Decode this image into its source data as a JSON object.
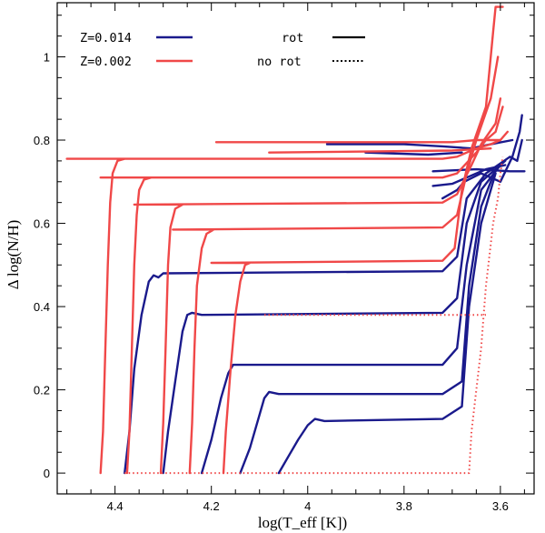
{
  "chart_data": {
    "type": "line",
    "title": "",
    "xlabel": "log(T_eff [K])",
    "ylabel": "Δ log(N/H)",
    "xlim": [
      4.52,
      3.53
    ],
    "ylim": [
      -0.05,
      1.13
    ],
    "x_ticks": [
      4.4,
      4.2,
      4.0,
      3.8,
      3.6
    ],
    "y_ticks": [
      0,
      0.2,
      0.4,
      0.6,
      0.8,
      1.0
    ],
    "x_tick_labels": [
      "4.4",
      "4.2",
      "4",
      "3.8",
      "3.6"
    ],
    "y_tick_labels": [
      "0",
      "0.2",
      "0.4",
      "0.6",
      "0.8",
      "1"
    ],
    "colors": {
      "z014": "#1a1a8c",
      "z002": "#f04848",
      "axis": "#000000"
    },
    "legend": {
      "z014": "Z=0.014",
      "z002": "Z=0.002",
      "rot": "rot",
      "norot": "no rot"
    },
    "series": [
      {
        "name": "Z=0.014 rot",
        "color": "#1a1a8c",
        "style": "solid",
        "points": [
          [
            4.06,
            0.0
          ],
          [
            4.04,
            0.04
          ],
          [
            4.02,
            0.08
          ],
          [
            4.0,
            0.115
          ],
          [
            3.985,
            0.13
          ],
          [
            3.965,
            0.125
          ],
          [
            3.72,
            0.13
          ],
          [
            3.68,
            0.16
          ],
          [
            3.665,
            0.4
          ],
          [
            3.64,
            0.6
          ],
          [
            3.61,
            0.72
          ]
        ]
      },
      {
        "name": "Z=0.014 rot",
        "color": "#1a1a8c",
        "style": "solid",
        "points": [
          [
            4.14,
            0.0
          ],
          [
            4.12,
            0.06
          ],
          [
            4.1,
            0.14
          ],
          [
            4.09,
            0.18
          ],
          [
            4.08,
            0.195
          ],
          [
            4.06,
            0.19
          ],
          [
            3.72,
            0.19
          ],
          [
            3.68,
            0.22
          ],
          [
            3.665,
            0.45
          ],
          [
            3.64,
            0.64
          ],
          [
            3.61,
            0.73
          ]
        ]
      },
      {
        "name": "Z=0.014 rot",
        "color": "#1a1a8c",
        "style": "solid",
        "points": [
          [
            4.22,
            0.0
          ],
          [
            4.2,
            0.08
          ],
          [
            4.18,
            0.18
          ],
          [
            4.165,
            0.24
          ],
          [
            4.155,
            0.26
          ],
          [
            4.13,
            0.26
          ],
          [
            3.72,
            0.26
          ],
          [
            3.69,
            0.3
          ],
          [
            3.67,
            0.5
          ],
          [
            3.64,
            0.68
          ],
          [
            3.6,
            0.74
          ]
        ]
      },
      {
        "name": "Z=0.014 rot",
        "color": "#1a1a8c",
        "style": "solid",
        "points": [
          [
            4.3,
            0.0
          ],
          [
            4.29,
            0.1
          ],
          [
            4.275,
            0.22
          ],
          [
            4.26,
            0.34
          ],
          [
            4.25,
            0.38
          ],
          [
            4.24,
            0.385
          ],
          [
            4.22,
            0.38
          ],
          [
            3.72,
            0.385
          ],
          [
            3.69,
            0.42
          ],
          [
            3.67,
            0.6
          ],
          [
            3.64,
            0.7
          ],
          [
            3.59,
            0.75
          ]
        ]
      },
      {
        "name": "Z=0.014 rot",
        "color": "#1a1a8c",
        "style": "solid",
        "points": [
          [
            4.38,
            0.0
          ],
          [
            4.37,
            0.1
          ],
          [
            4.36,
            0.25
          ],
          [
            4.345,
            0.38
          ],
          [
            4.33,
            0.46
          ],
          [
            4.32,
            0.475
          ],
          [
            4.31,
            0.47
          ],
          [
            4.3,
            0.48
          ],
          [
            3.72,
            0.485
          ],
          [
            3.69,
            0.52
          ],
          [
            3.67,
            0.66
          ],
          [
            3.63,
            0.72
          ],
          [
            3.58,
            0.76
          ],
          [
            3.565,
            0.75
          ],
          [
            3.555,
            0.8
          ]
        ]
      },
      {
        "name": "Z=0.014 rot",
        "color": "#1a1a8c",
        "style": "solid",
        "points": [
          [
            3.72,
            0.66
          ],
          [
            3.69,
            0.68
          ],
          [
            3.675,
            0.7
          ],
          [
            3.64,
            0.72
          ],
          [
            3.6,
            0.7
          ],
          [
            3.575,
            0.76
          ],
          [
            3.56,
            0.82
          ],
          [
            3.555,
            0.86
          ]
        ]
      },
      {
        "name": "Z=0.014 rot",
        "color": "#1a1a8c",
        "style": "solid",
        "points": [
          [
            3.74,
            0.69
          ],
          [
            3.7,
            0.695
          ],
          [
            3.67,
            0.71
          ],
          [
            3.63,
            0.73
          ],
          [
            3.59,
            0.74
          ]
        ]
      },
      {
        "name": "Z=0.014 rot",
        "color": "#1a1a8c",
        "style": "solid",
        "points": [
          [
            3.96,
            0.79
          ],
          [
            3.8,
            0.79
          ],
          [
            3.72,
            0.785
          ],
          [
            3.66,
            0.78
          ],
          [
            3.62,
            0.79
          ],
          [
            3.575,
            0.8
          ]
        ]
      },
      {
        "name": "Z=0.014 rot",
        "color": "#1a1a8c",
        "style": "solid",
        "points": [
          [
            3.88,
            0.77
          ],
          [
            3.75,
            0.765
          ],
          [
            3.68,
            0.77
          ]
        ]
      },
      {
        "name": "Z=0.014 rot",
        "color": "#1a1a8c",
        "style": "solid",
        "points": [
          [
            3.74,
            0.725
          ],
          [
            3.65,
            0.73
          ],
          [
            3.58,
            0.725
          ],
          [
            3.55,
            0.725
          ]
        ]
      },
      {
        "name": "Z=0.002 rot",
        "color": "#f04848",
        "style": "solid",
        "points": [
          [
            4.43,
            0.0
          ],
          [
            4.425,
            0.1
          ],
          [
            4.42,
            0.3
          ],
          [
            4.415,
            0.5
          ],
          [
            4.41,
            0.65
          ],
          [
            4.405,
            0.72
          ],
          [
            4.395,
            0.75
          ],
          [
            4.38,
            0.755
          ],
          [
            4.5,
            0.755
          ],
          [
            3.72,
            0.755
          ],
          [
            3.69,
            0.76
          ],
          [
            3.65,
            0.78
          ],
          [
            3.62,
            0.79
          ],
          [
            3.6,
            0.8
          ],
          [
            3.585,
            0.82
          ]
        ]
      },
      {
        "name": "Z=0.002 rot",
        "color": "#f04848",
        "style": "solid",
        "points": [
          [
            4.375,
            0.0
          ],
          [
            4.37,
            0.1
          ],
          [
            4.365,
            0.3
          ],
          [
            4.36,
            0.5
          ],
          [
            4.355,
            0.62
          ],
          [
            4.35,
            0.68
          ],
          [
            4.34,
            0.705
          ],
          [
            4.325,
            0.71
          ],
          [
            4.43,
            0.71
          ],
          [
            3.72,
            0.71
          ],
          [
            3.69,
            0.72
          ],
          [
            3.65,
            0.77
          ],
          [
            3.63,
            0.8
          ],
          [
            3.61,
            0.82
          ],
          [
            3.595,
            0.88
          ]
        ]
      },
      {
        "name": "Z=0.002 rot",
        "color": "#f04848",
        "style": "solid",
        "points": [
          [
            4.305,
            0.0
          ],
          [
            4.3,
            0.12
          ],
          [
            4.295,
            0.3
          ],
          [
            4.29,
            0.5
          ],
          [
            4.285,
            0.59
          ],
          [
            4.275,
            0.635
          ],
          [
            4.26,
            0.645
          ],
          [
            4.36,
            0.645
          ],
          [
            3.72,
            0.65
          ],
          [
            3.69,
            0.67
          ],
          [
            3.66,
            0.74
          ],
          [
            3.64,
            0.79
          ],
          [
            3.61,
            0.84
          ],
          [
            3.6,
            0.9
          ]
        ]
      },
      {
        "name": "Z=0.002 rot",
        "color": "#f04848",
        "style": "solid",
        "points": [
          [
            4.245,
            0.0
          ],
          [
            4.24,
            0.12
          ],
          [
            4.235,
            0.3
          ],
          [
            4.23,
            0.45
          ],
          [
            4.22,
            0.54
          ],
          [
            4.21,
            0.575
          ],
          [
            4.195,
            0.585
          ],
          [
            4.28,
            0.585
          ],
          [
            3.72,
            0.59
          ],
          [
            3.69,
            0.62
          ],
          [
            3.67,
            0.72
          ],
          [
            3.65,
            0.8
          ],
          [
            3.62,
            0.9
          ],
          [
            3.605,
            1.0
          ]
        ]
      },
      {
        "name": "Z=0.002 rot",
        "color": "#f04848",
        "style": "solid",
        "points": [
          [
            4.175,
            0.0
          ],
          [
            4.17,
            0.1
          ],
          [
            4.16,
            0.25
          ],
          [
            4.15,
            0.38
          ],
          [
            4.14,
            0.46
          ],
          [
            4.13,
            0.5
          ],
          [
            4.12,
            0.505
          ],
          [
            4.2,
            0.505
          ],
          [
            3.72,
            0.51
          ],
          [
            3.695,
            0.54
          ],
          [
            3.68,
            0.68
          ],
          [
            3.66,
            0.78
          ],
          [
            3.63,
            0.88
          ],
          [
            3.615,
            1.06
          ],
          [
            3.61,
            1.12
          ],
          [
            3.595,
            1.12
          ]
        ]
      },
      {
        "name": "Z=0.002 rot",
        "color": "#f04848",
        "style": "solid",
        "points": [
          [
            4.19,
            0.795
          ],
          [
            3.7,
            0.795
          ],
          [
            3.65,
            0.8
          ],
          [
            3.6,
            0.8
          ]
        ]
      },
      {
        "name": "Z=0.002 rot",
        "color": "#f04848",
        "style": "solid",
        "points": [
          [
            4.08,
            0.77
          ],
          [
            3.7,
            0.775
          ],
          [
            3.62,
            0.78
          ]
        ]
      },
      {
        "name": "Z=0.002 no rot",
        "color": "#f04848",
        "style": "dotted",
        "points": [
          [
            4.38,
            0.0
          ],
          [
            3.665,
            0.0
          ],
          [
            3.66,
            0.1
          ],
          [
            3.64,
            0.3
          ],
          [
            3.635,
            0.375
          ],
          [
            3.63,
            0.45
          ],
          [
            3.62,
            0.55
          ],
          [
            3.615,
            0.6
          ],
          [
            3.605,
            0.66
          ],
          [
            3.6,
            0.72
          ],
          [
            3.595,
            0.76
          ]
        ]
      },
      {
        "name": "Z=0.002 no rot",
        "color": "#f04848",
        "style": "dotted",
        "points": [
          [
            4.09,
            0.38
          ],
          [
            3.63,
            0.38
          ]
        ]
      }
    ]
  }
}
